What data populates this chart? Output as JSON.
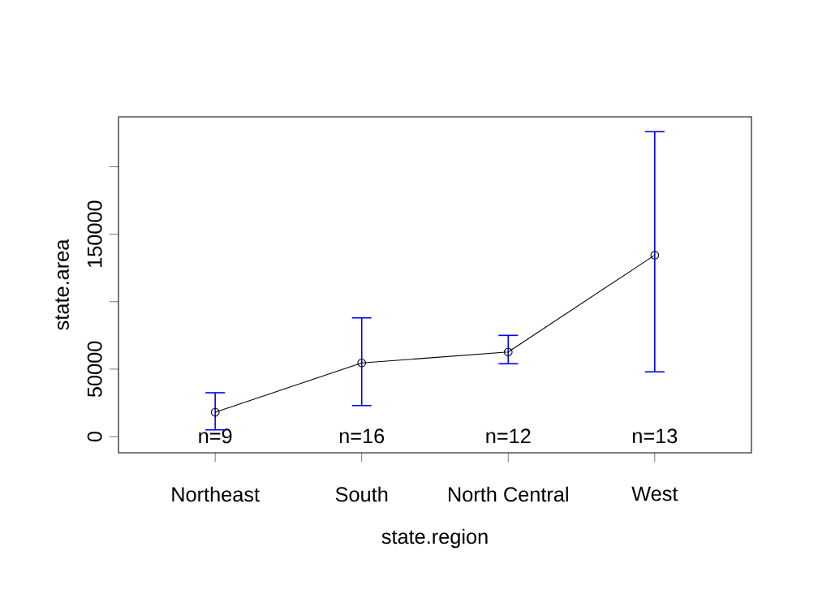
{
  "chart_data": {
    "type": "line",
    "xlabel": "state.region",
    "ylabel": "state.area",
    "categories": [
      "Northeast",
      "South",
      "North Central",
      "West"
    ],
    "values": [
      18000,
      54600,
      62700,
      134500
    ],
    "errors": [
      [
        5000,
        32500
      ],
      [
        23000,
        88000
      ],
      [
        54000,
        75000
      ],
      [
        48000,
        226000
      ]
    ],
    "color": "#000000",
    "marker": "circle",
    "ylim": [
      -12000,
      237000
    ],
    "yticks": [
      0,
      50000,
      {
        "value": 100000,
        "label": null
      },
      150000,
      {
        "value": 200000,
        "label": null
      }
    ],
    "annotations": [
      "n=9",
      "n=16",
      "n=12",
      "n=13"
    ]
  }
}
